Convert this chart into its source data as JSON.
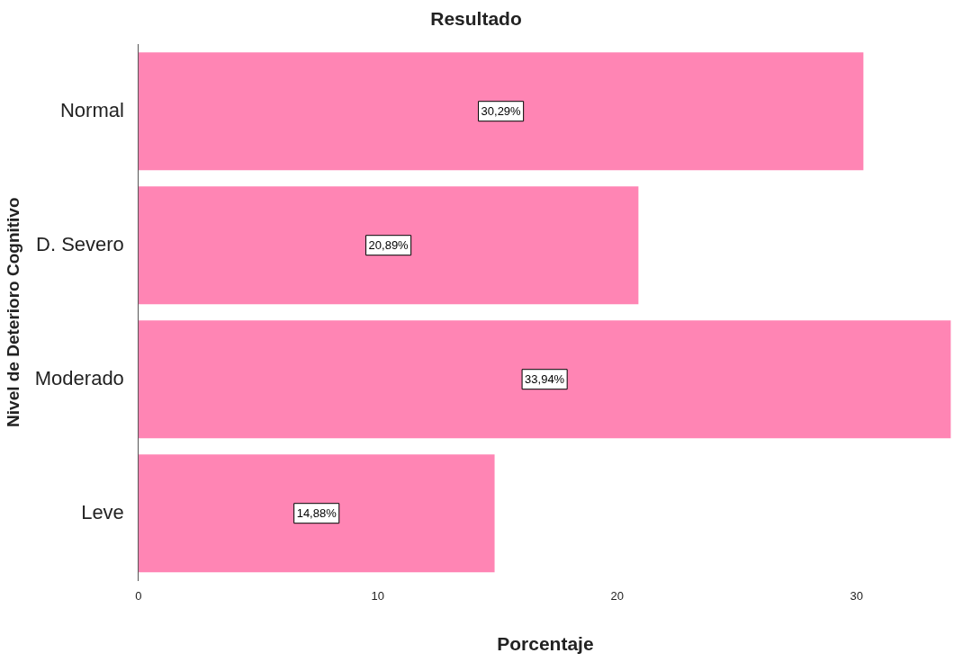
{
  "chart_data": {
    "type": "bar",
    "orientation": "horizontal",
    "title": "Resultado",
    "xlabel": "Porcentaje",
    "ylabel": "Nivel de Deterioro Cognitivo",
    "categories": [
      "Normal",
      "D. Severo",
      "Moderado",
      "Leve"
    ],
    "values": [
      30.29,
      20.89,
      33.94,
      14.88
    ],
    "value_labels": [
      "30,29%",
      "20,89%",
      "33,94%",
      "14,88%"
    ],
    "color": "#ff85b4",
    "xlim": [
      0,
      34
    ],
    "xticks": [
      0,
      10,
      20,
      30
    ],
    "grid": false,
    "legend": false
  }
}
